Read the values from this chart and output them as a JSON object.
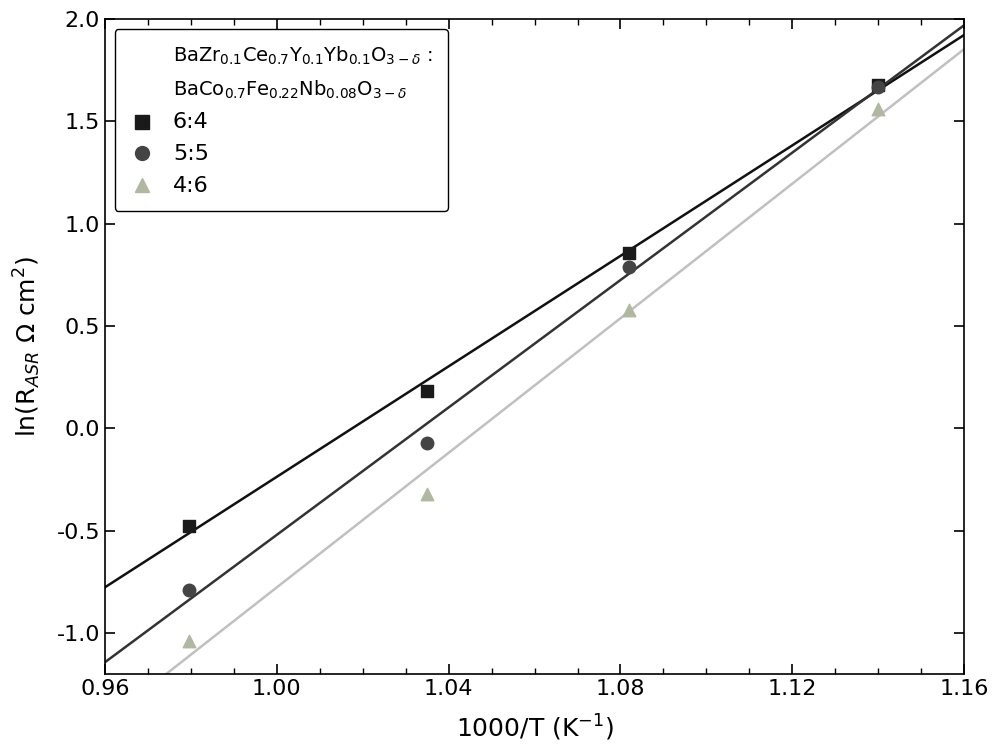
{
  "series": [
    {
      "label": "6:4",
      "marker": "s",
      "color": "#1a1a1a",
      "line_color": "#111111",
      "x": [
        0.9795,
        1.035,
        1.082,
        1.14
      ],
      "y": [
        -0.475,
        0.185,
        0.855,
        1.68
      ]
    },
    {
      "label": "5:5",
      "marker": "o",
      "color": "#444444",
      "line_color": "#333333",
      "x": [
        0.9795,
        1.035,
        1.082,
        1.14
      ],
      "y": [
        -0.79,
        -0.07,
        0.79,
        1.67
      ]
    },
    {
      "label": "4:6",
      "marker": "^",
      "color": "#b0b8a0",
      "line_color": "#c0c0c0",
      "x": [
        0.9795,
        1.035,
        1.082,
        1.14
      ],
      "y": [
        -1.04,
        -0.32,
        0.58,
        1.56
      ]
    }
  ],
  "xlabel": "1000/T (K$^{-1}$)",
  "ylabel": "ln(R$_{ASR}$ Ω cm$^{2}$)",
  "xlim": [
    0.96,
    1.16
  ],
  "ylim": [
    -1.2,
    2.0
  ],
  "xticks_major": [
    0.96,
    1.0,
    1.04,
    1.08,
    1.12,
    1.16
  ],
  "xticks_minor": [
    0.97,
    0.98,
    0.99,
    1.01,
    1.02,
    1.03,
    1.05,
    1.06,
    1.07,
    1.09,
    1.1,
    1.11,
    1.13,
    1.14,
    1.15
  ],
  "yticks": [
    -1.0,
    -0.5,
    0.0,
    0.5,
    1.0,
    1.5,
    2.0
  ],
  "legend_title_line1": "BaZr$_{0.1}$Ce$_{0.7}$Y$_{0.1}$Yb$_{0.1}$O$_{3-δ}$ :",
  "legend_title_line2": "BaCo$_{0.7}$Fe$_{0.22}$Nb$_{0.08}$O$_{3-δ}$",
  "marker_size": 9,
  "line_width": 1.8,
  "font_size": 18,
  "tick_font_size": 16,
  "legend_font_size": 14,
  "background_color": "#ffffff"
}
